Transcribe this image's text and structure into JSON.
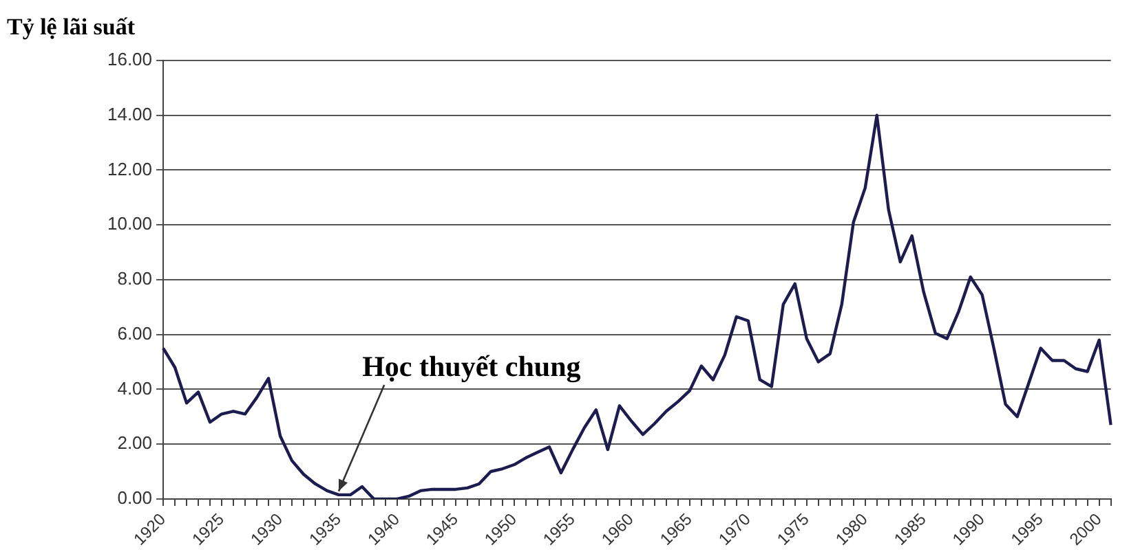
{
  "chart_data": {
    "type": "line",
    "title": "Tỷ lệ lãi suất",
    "categories": [
      "1920",
      null,
      null,
      null,
      null,
      "1925",
      null,
      null,
      null,
      null,
      "1930",
      null,
      null,
      null,
      null,
      "1935",
      null,
      null,
      null,
      null,
      "1940",
      null,
      null,
      null,
      null,
      "1945",
      null,
      null,
      null,
      null,
      "1950",
      null,
      null,
      null,
      null,
      "1955",
      null,
      null,
      null,
      null,
      "1960",
      null,
      null,
      null,
      null,
      "1965",
      null,
      null,
      null,
      null,
      "1970",
      null,
      null,
      null,
      null,
      "1975",
      null,
      null,
      null,
      null,
      "1980",
      null,
      null,
      null,
      null,
      "1985",
      null,
      null,
      null,
      null,
      "1990",
      null,
      null,
      null,
      null,
      "1995",
      null,
      null,
      null,
      null,
      "2000",
      null
    ],
    "series": [
      {
        "color": "#1c1c4e",
        "values": [
          5.5,
          4.8,
          3.5,
          3.9,
          2.8,
          3.1,
          3.2,
          3.1,
          3.7,
          4.4,
          2.3,
          1.4,
          0.9,
          0.55,
          0.3,
          0.15,
          0.15,
          0.45,
          0,
          0,
          0,
          0.1,
          0.3,
          0.35,
          0.35,
          0.35,
          0.4,
          0.55,
          1.0,
          1.1,
          1.25,
          1.5,
          1.7,
          1.9,
          0.95,
          1.8,
          2.6,
          3.25,
          1.8,
          3.4,
          2.85,
          2.35,
          2.75,
          3.2,
          3.55,
          3.95,
          4.85,
          4.35,
          5.25,
          6.65,
          6.5,
          4.35,
          4.1,
          7.1,
          7.85,
          5.85,
          5.0,
          5.3,
          7.1,
          10.1,
          11.35,
          14.0,
          10.55,
          8.65,
          9.6,
          7.55,
          6.05,
          5.85,
          6.85,
          8.1,
          7.45,
          5.5,
          3.45,
          3.0,
          4.25,
          5.5,
          5.05,
          5.05,
          4.75,
          4.65,
          5.8,
          2.7
        ]
      }
    ],
    "ylim": [
      0,
      16
    ],
    "yticks": [
      {
        "value": 0,
        "label": "0.00"
      },
      {
        "value": 2,
        "label": "2.00"
      },
      {
        "value": 4,
        "label": "4.00"
      },
      {
        "value": 6,
        "label": "6.00"
      },
      {
        "value": 8,
        "label": "8.00"
      },
      {
        "value": 10,
        "label": "10.00"
      },
      {
        "value": 12,
        "label": "12.00"
      },
      {
        "value": 14,
        "label": "14.00"
      },
      {
        "value": 16,
        "label": "16.00"
      }
    ],
    "grid": "y",
    "legend": false,
    "marker": "none",
    "line_style": "solid",
    "annotations": [
      {
        "text": "Học thuyết chung",
        "x": "1935",
        "y": 0.15
      }
    ]
  }
}
